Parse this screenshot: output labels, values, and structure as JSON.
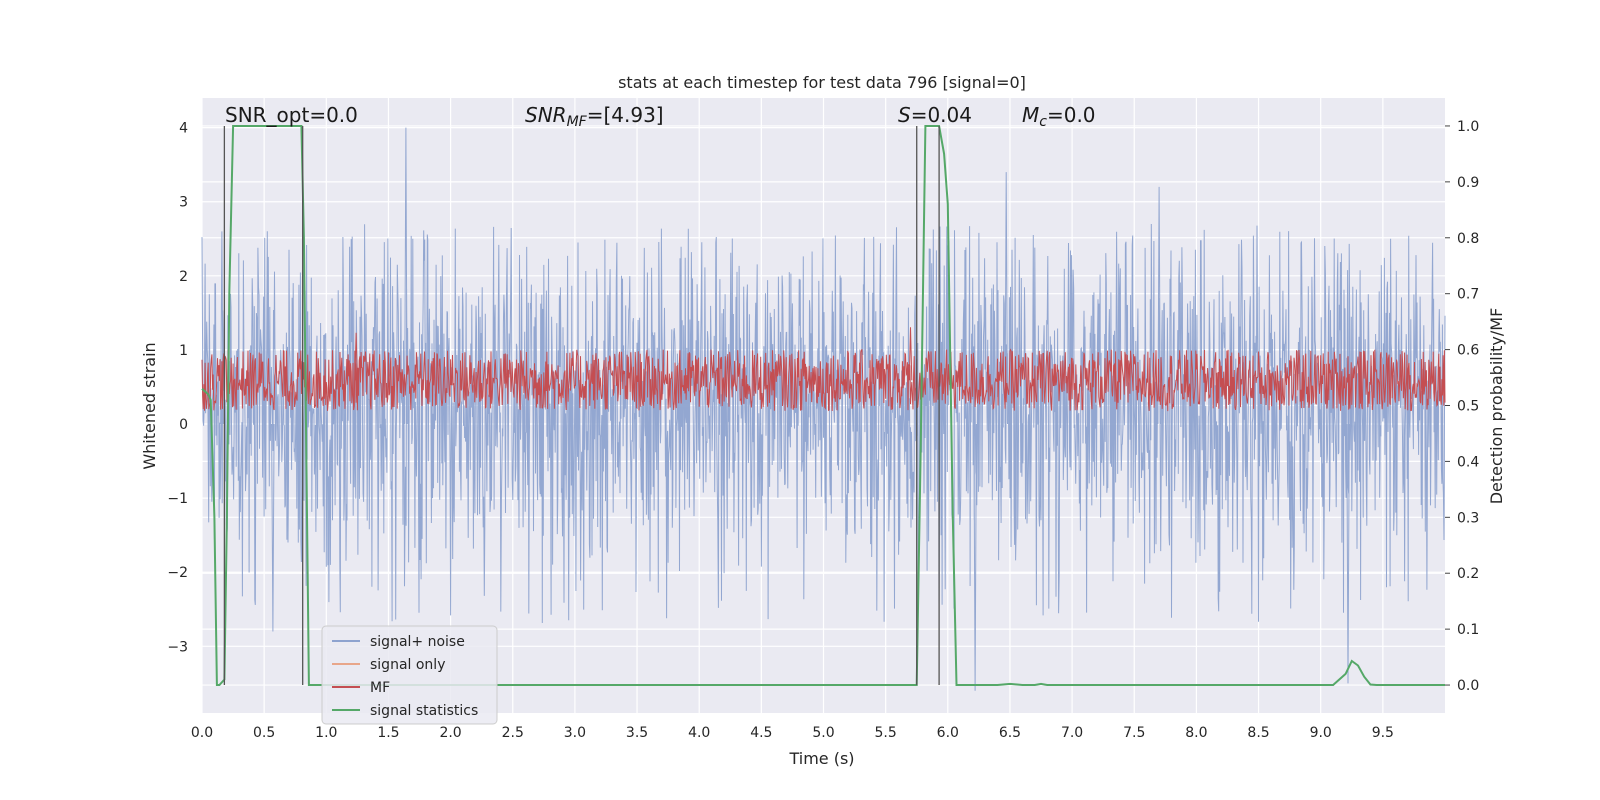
{
  "chart_data": {
    "type": "line",
    "title": "stats at each timestep for test data 796 [signal=0]",
    "xlabel": "Time (s)",
    "ylabel_left": "Whitened strain",
    "ylabel_right": "Detection probability/MF",
    "xlim": [
      0.0,
      10.0
    ],
    "ylim_left": [
      -3.9,
      4.4
    ],
    "ylim_right": [
      -0.05,
      1.05
    ],
    "x_ticks": [
      "0.0",
      "0.5",
      "1.0",
      "1.5",
      "2.0",
      "2.5",
      "3.0",
      "3.5",
      "4.0",
      "4.5",
      "5.0",
      "5.5",
      "6.0",
      "6.5",
      "7.0",
      "7.5",
      "8.0",
      "8.5",
      "9.0",
      "9.5"
    ],
    "y_left_ticks": [
      "4",
      "3",
      "2",
      "1",
      "0",
      "−1",
      "−2",
      "−3"
    ],
    "y_right_ticks": [
      "1.0",
      "0.9",
      "0.8",
      "0.7",
      "0.6",
      "0.5",
      "0.4",
      "0.3",
      "0.2",
      "0.1",
      "0.0"
    ],
    "grid": true,
    "legend_position": "lower-left",
    "annotations": {
      "snr_opt": "SNR_opt=0.0",
      "snr_mf_sym": "SNR",
      "snr_mf_sub": "MF",
      "snr_mf_val": "=[4.93]",
      "s_sym": "S",
      "s_val": "=0.04",
      "mc_sym": "M",
      "mc_sub": "c",
      "mc_val": "=0.0"
    },
    "vertical_lines_s": [
      0.18,
      0.81,
      5.75,
      5.93
    ],
    "series": [
      {
        "name": "signal+ noise",
        "color": "#8ea3cf",
        "axis": "left",
        "description_values": {
          "typical_envelope": [
            -1.3,
            1.8
          ],
          "peaks": [
            [
              0.16,
              2.6
            ],
            [
              1.64,
              4.0
            ],
            [
              6.47,
              3.4
            ],
            [
              7.7,
              3.2
            ],
            [
              0.57,
              -2.8
            ],
            [
              6.22,
              -3.6
            ],
            [
              9.22,
              -3.5
            ]
          ]
        }
      },
      {
        "name": "signal only",
        "color": "#e8a68a",
        "axis": "left",
        "values": []
      },
      {
        "name": "MF",
        "color": "#c44e52",
        "axis": "right",
        "description_values": {
          "typical_band": [
            0.49,
            0.6
          ],
          "peaks": [
            [
              1.24,
              0.63
            ],
            [
              5.7,
              0.64
            ]
          ]
        }
      },
      {
        "name": "signal statistics",
        "color": "#55a868",
        "axis": "right",
        "x": [
          0.0,
          0.05,
          0.07,
          0.1,
          0.12,
          0.14,
          0.18,
          0.2,
          0.22,
          0.25,
          0.8,
          0.82,
          0.86,
          0.9,
          5.75,
          5.78,
          5.82,
          5.9,
          5.93,
          5.97,
          6.0,
          6.04,
          6.07,
          6.4,
          6.5,
          6.6,
          6.7,
          6.75,
          6.8,
          9.1,
          9.15,
          9.2,
          9.25,
          9.3,
          9.35,
          9.4,
          9.45,
          10.0
        ],
        "y": [
          0.53,
          0.52,
          0.51,
          0.3,
          0.0,
          0.0,
          0.01,
          0.3,
          0.7,
          1.0,
          1.0,
          0.8,
          0.0,
          0.0,
          0.0,
          0.4,
          1.0,
          1.0,
          1.0,
          0.95,
          0.86,
          0.3,
          0.0,
          0.0,
          0.002,
          0.0,
          0.0,
          0.002,
          0.0,
          0.0,
          0.01,
          0.02,
          0.043,
          0.035,
          0.015,
          0.001,
          0.0,
          0.0
        ]
      }
    ]
  }
}
